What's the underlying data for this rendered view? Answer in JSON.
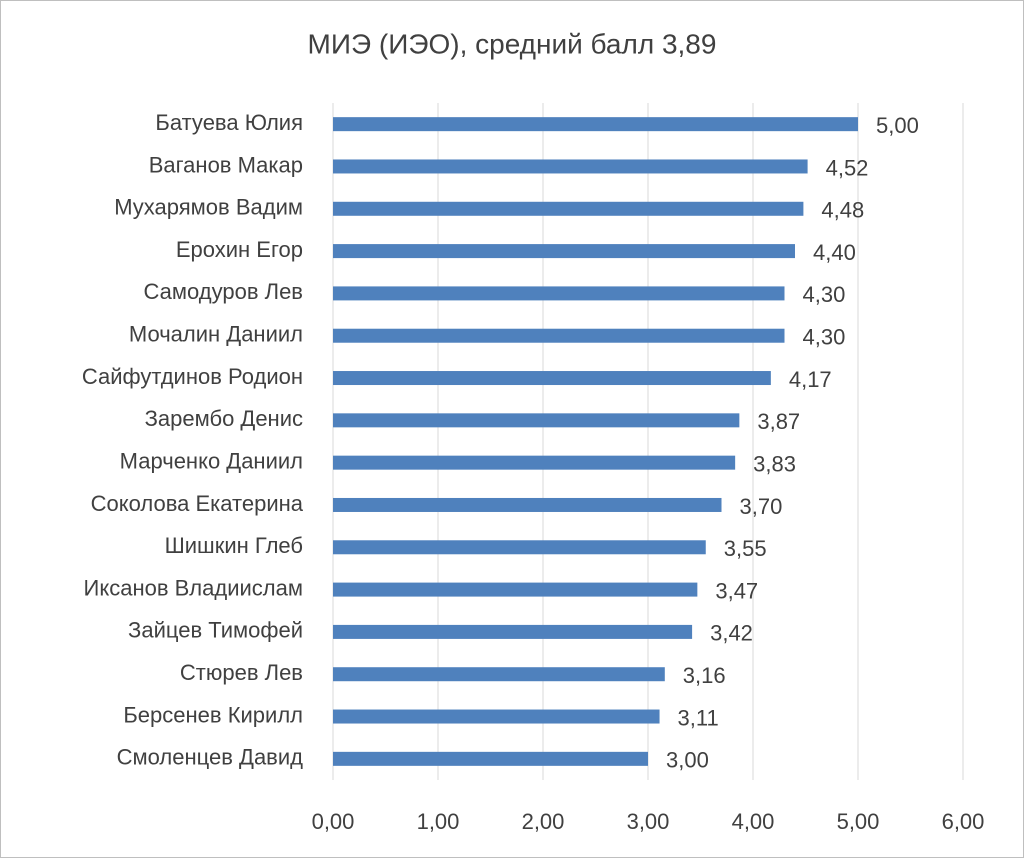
{
  "chart_data": {
    "type": "bar",
    "orientation": "horizontal",
    "title": "МИЭ (ИЭО), средний балл 3,89",
    "categories": [
      "Батуева Юлия",
      "Ваганов Макар",
      "Мухарямов Вадим",
      "Ерохин Егор",
      "Самодуров Лев",
      "Мочалин Даниил",
      "Сайфутдинов Родион",
      "Зарембо Денис",
      "Марченко Даниил",
      "Соколова Екатерина",
      "Шишкин Глеб",
      "Иксанов Владиислам",
      "Зайцев Тимофей",
      "Стюрев Лев",
      "Берсенев Кирилл",
      "Смоленцев Давид"
    ],
    "values": [
      5.0,
      4.52,
      4.48,
      4.4,
      4.3,
      4.3,
      4.17,
      3.87,
      3.83,
      3.7,
      3.55,
      3.47,
      3.42,
      3.16,
      3.11,
      3.0
    ],
    "value_labels": [
      "5,00",
      "4,52",
      "4,48",
      "4,40",
      "4,30",
      "4,30",
      "4,17",
      "3,87",
      "3,83",
      "3,70",
      "3,55",
      "3,47",
      "3,42",
      "3,16",
      "3,11",
      "3,00"
    ],
    "color": "#4f81bd",
    "xlim": [
      0,
      6
    ],
    "xticks": [
      {
        "value": 0,
        "label": "0,00"
      },
      {
        "value": 1,
        "label": "1,00"
      },
      {
        "value": 2,
        "label": "2,00"
      },
      {
        "value": 3,
        "label": "3,00"
      },
      {
        "value": 4,
        "label": "4,00"
      },
      {
        "value": 5,
        "label": "5,00"
      },
      {
        "value": 6,
        "label": "6,00"
      }
    ],
    "grid": true
  }
}
